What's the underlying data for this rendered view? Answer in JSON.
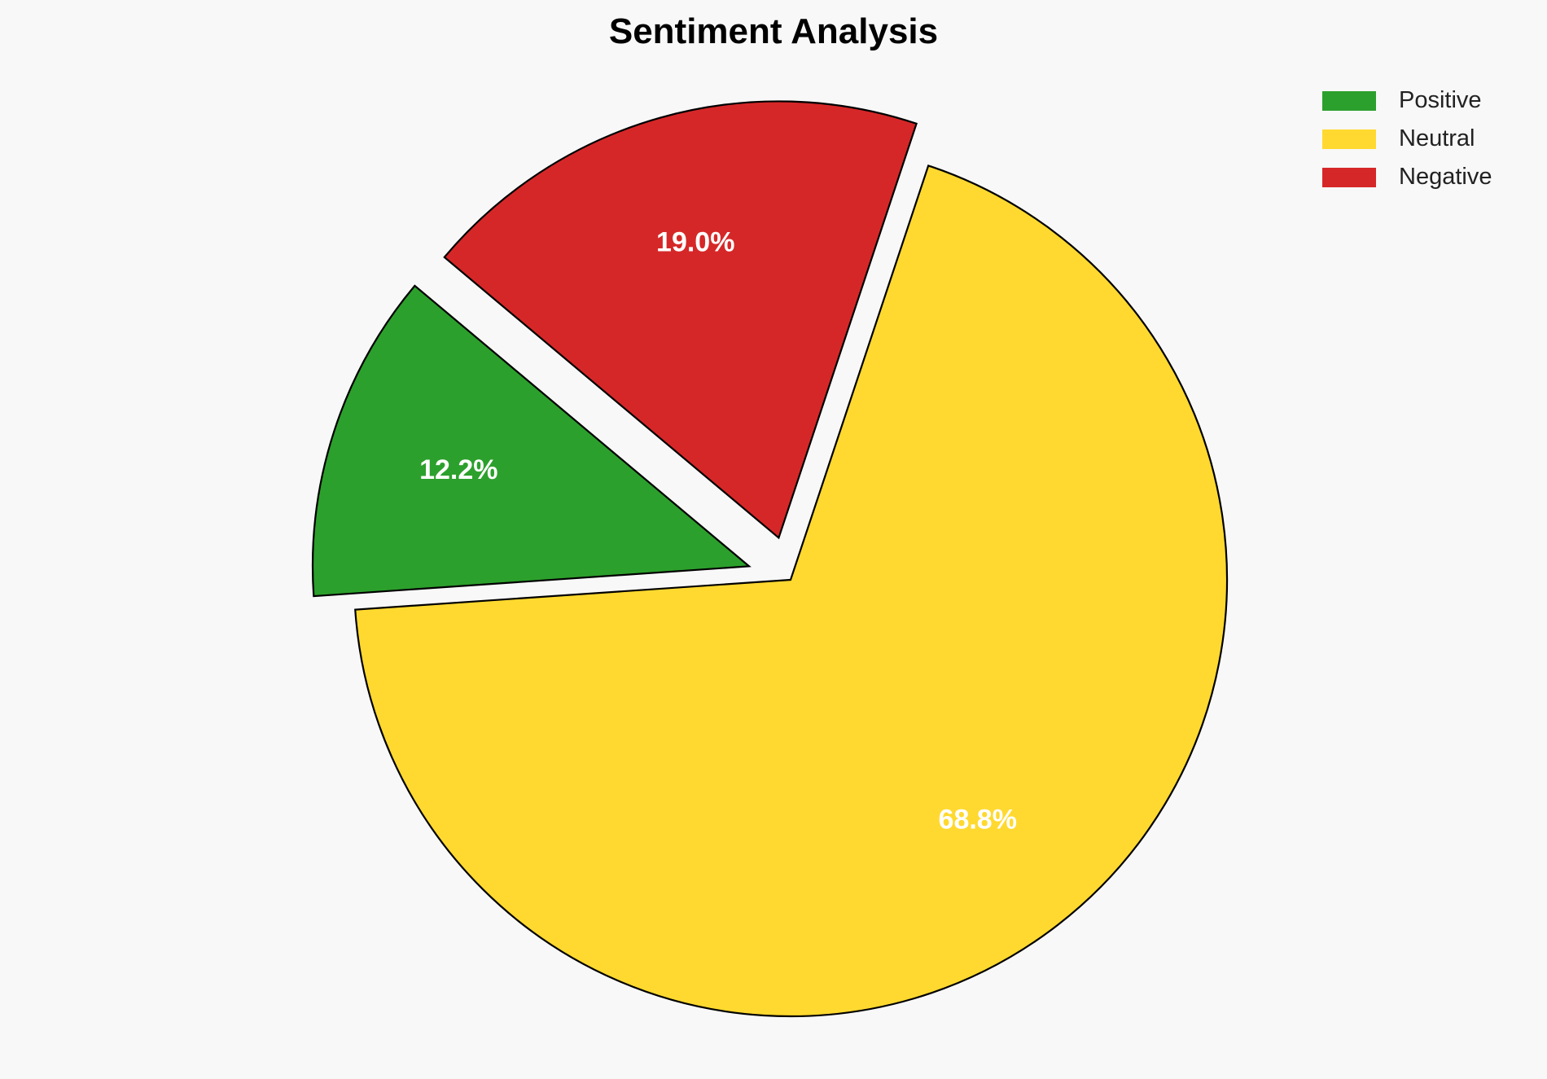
{
  "chart_data": {
    "type": "pie",
    "title": "Sentiment Analysis",
    "categories": [
      "Positive",
      "Neutral",
      "Negative"
    ],
    "values": [
      12.2,
      68.8,
      19.0
    ],
    "labels": [
      "12.2%",
      "68.8%",
      "19.0%"
    ],
    "colors": [
      "#2ca02c",
      "#ffd92f",
      "#d62728"
    ],
    "explode": [
      0.1,
      0,
      0.1
    ],
    "start_angle": 140,
    "direction": "counterclockwise",
    "legend_position": "top-right"
  }
}
